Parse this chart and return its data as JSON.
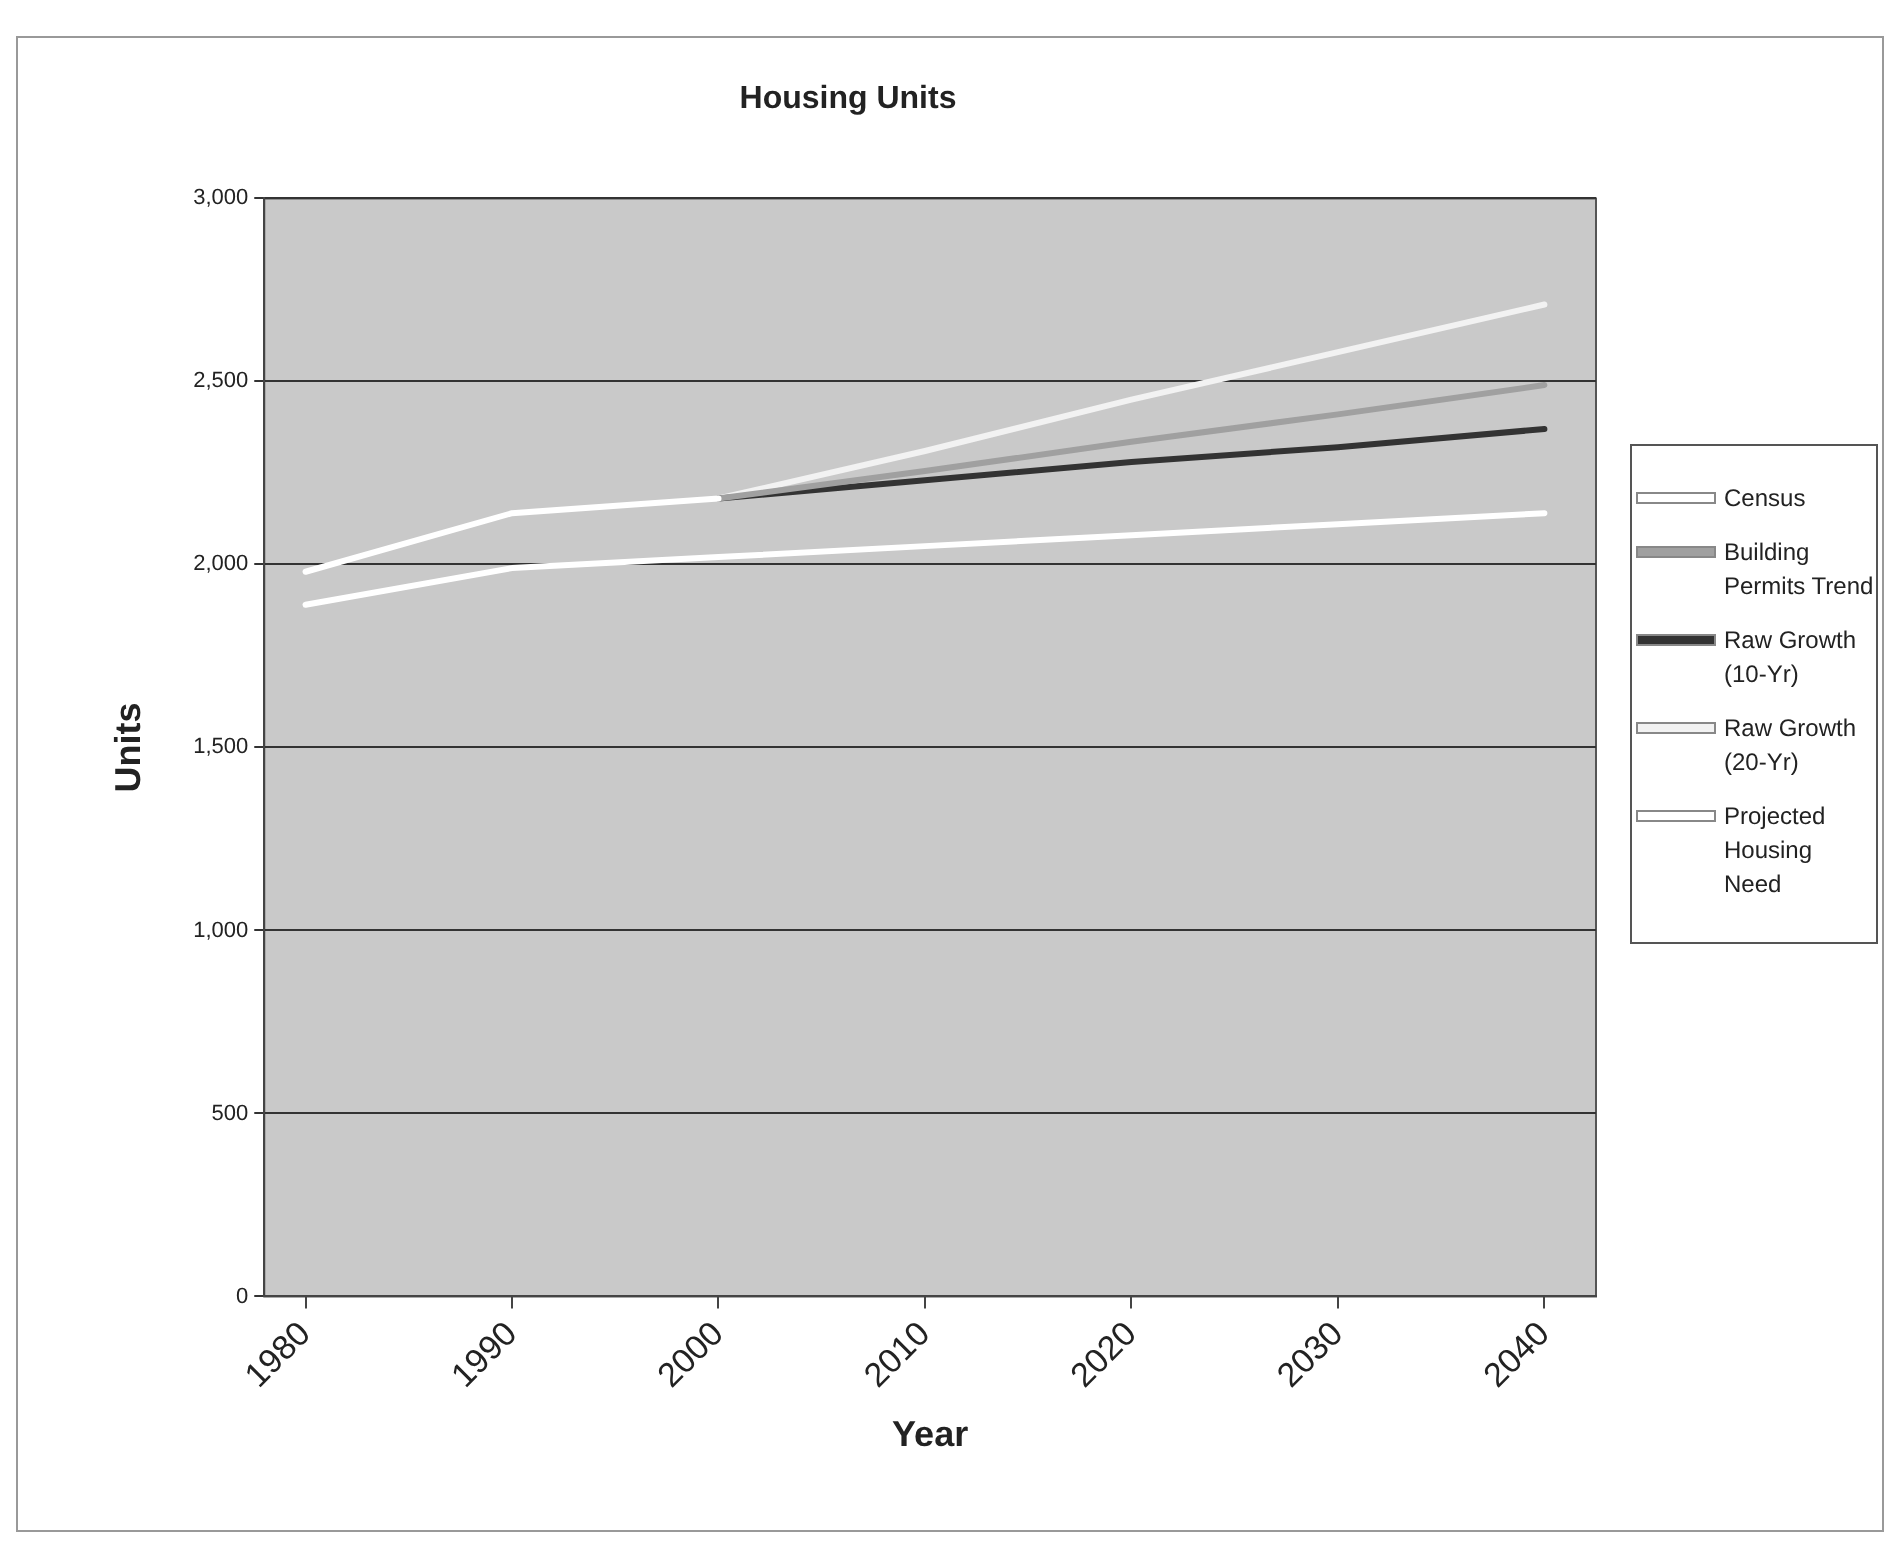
{
  "chart_data": {
    "type": "line",
    "title": "Housing Units",
    "xlabel": "Year",
    "ylabel": "Units",
    "xlim": [
      1978,
      2042.5
    ],
    "xticks": [
      1980,
      1990,
      2000,
      2010,
      2020,
      2030,
      2040
    ],
    "ylim": [
      0,
      3000
    ],
    "yticks": [
      0,
      500,
      {
        "value": 1000,
        "label": "1,000"
      },
      {
        "value": 1500,
        "label": "1,500"
      },
      {
        "value": 2000,
        "label": "2,000"
      },
      {
        "value": 2500,
        "label": "2,500"
      },
      {
        "value": 3000,
        "label": "3,000"
      }
    ],
    "grid": "y",
    "legend": "right",
    "marker": "none",
    "series": [
      {
        "name": "Census",
        "color": "#ffffff",
        "x": [
          1980,
          1990,
          2000
        ],
        "values": [
          1980,
          2140,
          2180
        ]
      },
      {
        "name": "Building Permits Trend",
        "color": "#a0a0a0",
        "x": [
          2000,
          2010,
          2020,
          2030,
          2040
        ],
        "values": [
          2180,
          2255,
          2335,
          2410,
          2490
        ]
      },
      {
        "name": "Raw Growth (10-Yr)",
        "color": "#333333",
        "x": [
          2000,
          2010,
          2020,
          2030,
          2040
        ],
        "values": [
          2180,
          2230,
          2280,
          2320,
          2370
        ]
      },
      {
        "name": "Raw Growth (20-Yr)",
        "color": "#f2f2f2",
        "x": [
          2000,
          2010,
          2020,
          2030,
          2040
        ],
        "values": [
          2180,
          2310,
          2450,
          2580,
          2710
        ]
      },
      {
        "name": "Projected Housing Need",
        "color": "#ffffff",
        "x": [
          1980,
          1990,
          2000,
          2010,
          2020,
          2030,
          2040
        ],
        "values": [
          1890,
          1990,
          2020,
          2050,
          2080,
          2110,
          2140
        ]
      }
    ]
  }
}
